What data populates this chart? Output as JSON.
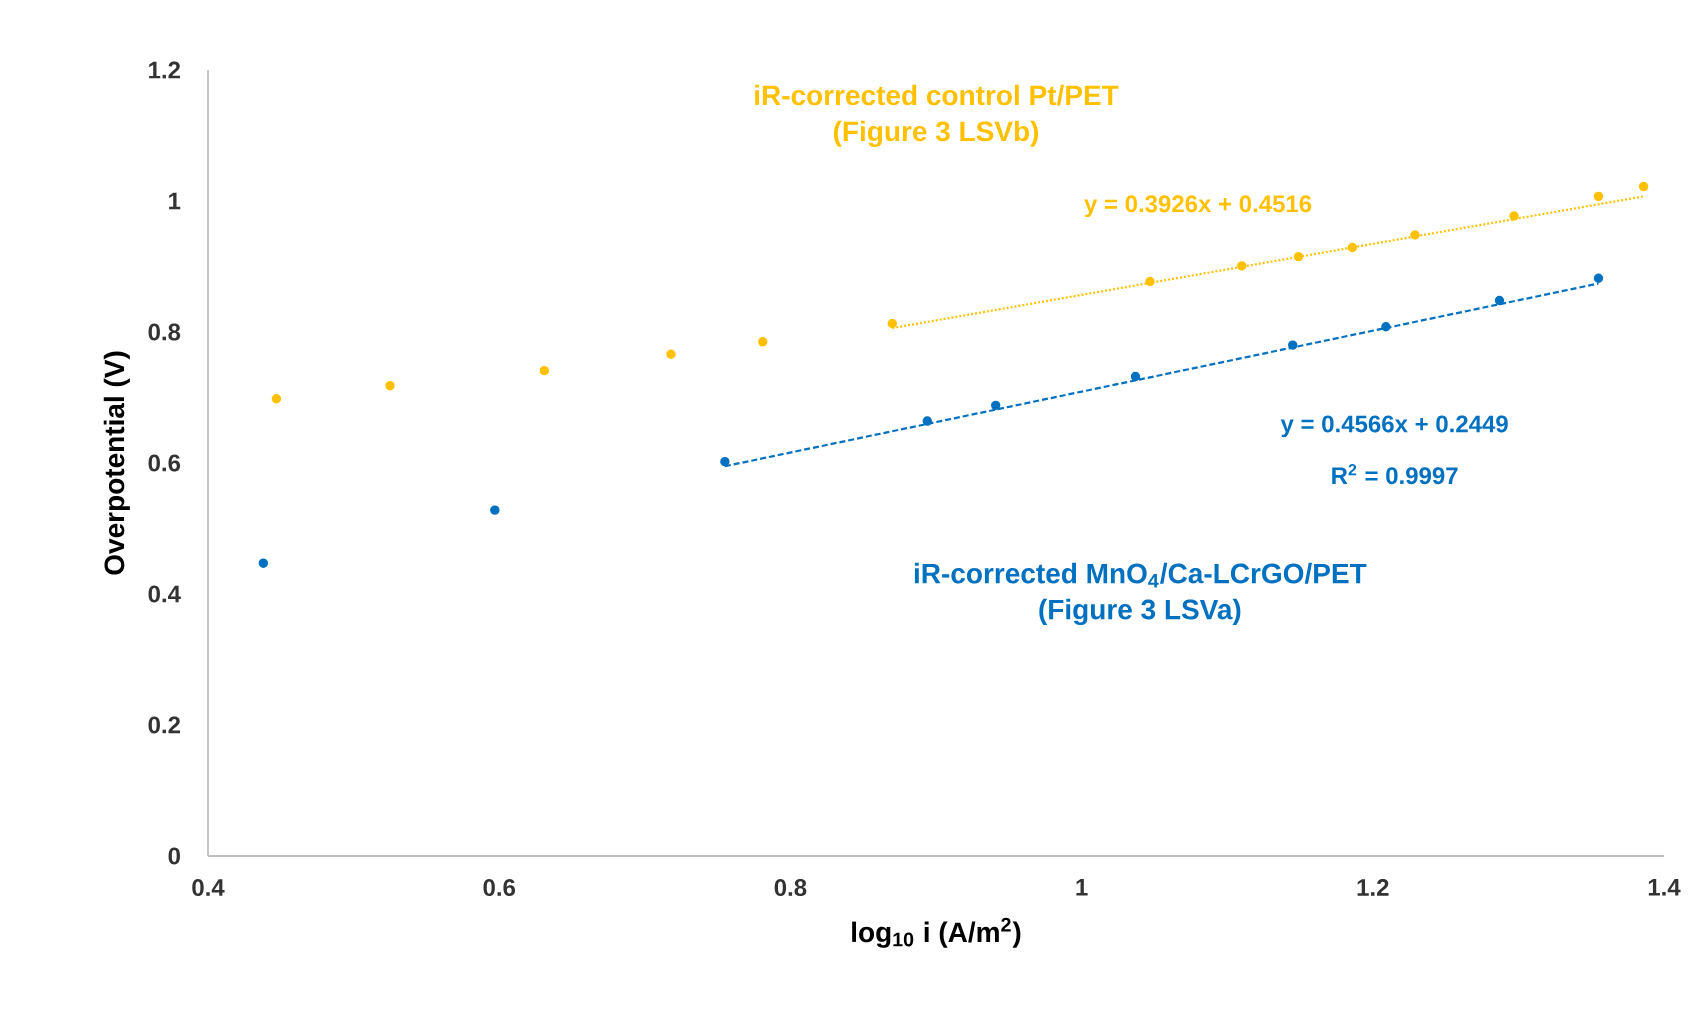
{
  "chart_data": {
    "type": "scatter",
    "xlabel": "log$_{10}$ i (A/m$^{2}$)",
    "ylabel": "Overpotential (V)",
    "xlim": [
      0.4,
      1.4
    ],
    "xticks": [
      0.4,
      0.6,
      0.8,
      1,
      1.2,
      1.4
    ],
    "ylim": [
      0,
      1.2
    ],
    "yticks": [
      0,
      0.2,
      0.4,
      0.6,
      0.8,
      1,
      1.2
    ],
    "grid": false,
    "legend": false,
    "marker": "circle",
    "series": [
      {
        "name": "iR-corrected control Pt/PET (Figure 3 LSVb)",
        "color": "#ffc000",
        "x": [
          0.447,
          0.525,
          0.631,
          0.718,
          0.781,
          0.87,
          1.047,
          1.11,
          1.149,
          1.186,
          1.229,
          1.297,
          1.355,
          1.386
        ],
        "values": [
          0.698,
          0.718,
          0.741,
          0.766,
          0.785,
          0.813,
          0.877,
          0.901,
          0.915,
          0.929,
          0.948,
          0.977,
          1.007,
          1.022
        ]
      },
      {
        "name": "iR-corrected MnO$_{4}$/Ca-LCrGO/PET (Figure 3 LSVa)",
        "color": "#0070c0",
        "x": [
          0.438,
          0.597,
          0.755,
          0.894,
          0.941,
          1.037,
          1.145,
          1.209,
          1.287,
          1.355
        ],
        "values": [
          0.447,
          0.528,
          0.602,
          0.664,
          0.688,
          0.732,
          0.78,
          0.808,
          0.848,
          0.882
        ]
      },
      {
        "color": "#ffc000",
        "type": "line",
        "line_style": "dotted",
        "marker": "none",
        "x": [
          0.87,
          1.386
        ],
        "values": [
          0.806,
          1.007
        ]
      },
      {
        "color": "#0070c0",
        "type": "line",
        "line_style": "dashed",
        "marker": "none",
        "x": [
          0.755,
          1.355
        ],
        "values": [
          0.595,
          0.874
        ]
      }
    ],
    "annotations": [
      "y = 0.3926x + 0.4516",
      "y = 0.4566x + 0.2449",
      "R$^{2}$ = 0.9997"
    ]
  }
}
